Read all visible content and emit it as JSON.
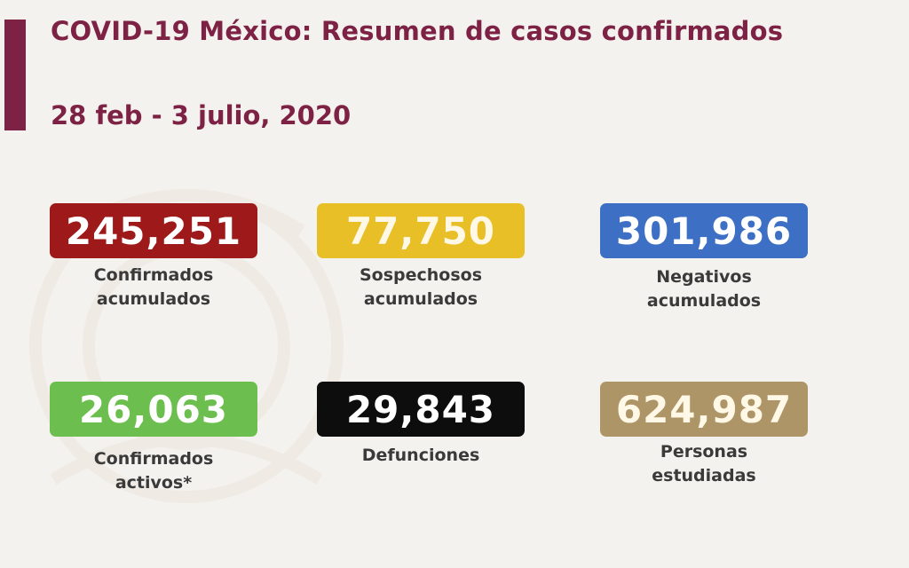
{
  "header": {
    "title": "COVID-19 México: Resumen de casos confirmados",
    "date_range": "28 feb - 3 julio, 2020"
  },
  "colors": {
    "brand": "#7d2244",
    "confirmados": "#9e1a1a",
    "sospechosos": "#e8bf26",
    "negativos": "#3d6fc4",
    "activos": "#6cbf4e",
    "defunciones": "#0d0d0d",
    "estudiadas": "#ad9567"
  },
  "stats": {
    "confirmados": {
      "value": "245,251",
      "label_1": "Confirmados",
      "label_2": "acumulados"
    },
    "sospechosos": {
      "value": "77,750",
      "label_1": "Sospechosos",
      "label_2": "acumulados"
    },
    "negativos": {
      "value": "301,986",
      "label_1": "Negativos",
      "label_2": "acumulados"
    },
    "activos": {
      "value": "26,063",
      "label_1": "Confirmados",
      "label_2": "activos*"
    },
    "defunciones": {
      "value": "29,843",
      "label_1": "Defunciones",
      "label_2": ""
    },
    "estudiadas": {
      "value": "624,987",
      "label_1": "Personas",
      "label_2": "estudiadas"
    }
  }
}
